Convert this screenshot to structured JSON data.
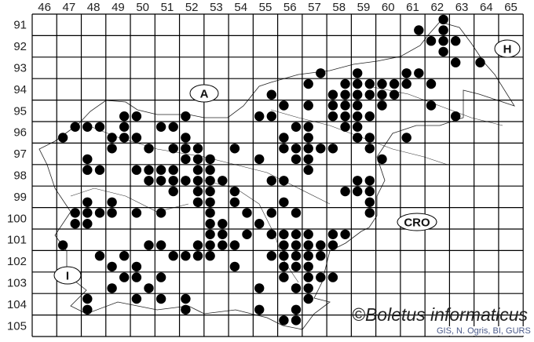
{
  "map_data": {
    "type": "grid-distribution-map",
    "column_labels": [
      "46",
      "47",
      "48",
      "49",
      "50",
      "51",
      "52",
      "53",
      "54",
      "55",
      "56",
      "57",
      "58",
      "59",
      "60",
      "61",
      "62",
      "63",
      "64",
      "65"
    ],
    "row_labels": [
      "91",
      "92",
      "93",
      "94",
      "95",
      "96",
      "97",
      "98",
      "99",
      "100",
      "101",
      "102",
      "103",
      "104",
      "105"
    ],
    "region_labels": {
      "austria": "A",
      "hungary": "H",
      "croatia": "CRO",
      "italy": "I"
    },
    "marker_color": "#000000",
    "records": [
      [
        62,
        91,
        "NE"
      ],
      [
        61,
        91,
        "SE"
      ],
      [
        62,
        91,
        "SE"
      ],
      [
        62,
        92,
        "NW"
      ],
      [
        62,
        92,
        "NE"
      ],
      [
        63,
        92,
        "NW"
      ],
      [
        62,
        92,
        "SE"
      ],
      [
        63,
        93,
        "NW"
      ],
      [
        64,
        93,
        "NW"
      ],
      [
        57,
        93,
        "SE"
      ],
      [
        59,
        93,
        "SW"
      ],
      [
        61,
        93,
        "SW"
      ],
      [
        61,
        93,
        "SE"
      ],
      [
        57,
        94,
        "NW"
      ],
      [
        58,
        94,
        "NE"
      ],
      [
        59,
        94,
        "NW"
      ],
      [
        59,
        94,
        "NE"
      ],
      [
        60,
        94,
        "NW"
      ],
      [
        60,
        94,
        "NE"
      ],
      [
        61,
        94,
        "NW"
      ],
      [
        62,
        94,
        "NW"
      ],
      [
        55,
        94,
        "SE"
      ],
      [
        58,
        94,
        "SW"
      ],
      [
        58,
        94,
        "SE"
      ],
      [
        59,
        94,
        "SW"
      ],
      [
        59,
        94,
        "SE"
      ],
      [
        60,
        94,
        "SW"
      ],
      [
        60,
        94,
        "SE"
      ],
      [
        56,
        95,
        "NW"
      ],
      [
        57,
        95,
        "NW"
      ],
      [
        58,
        95,
        "NW"
      ],
      [
        58,
        95,
        "NE"
      ],
      [
        59,
        95,
        "NW"
      ],
      [
        60,
        95,
        "NW"
      ],
      [
        62,
        95,
        "NW"
      ],
      [
        49,
        95,
        "SE"
      ],
      [
        50,
        95,
        "SW"
      ],
      [
        52,
        95,
        "SW"
      ],
      [
        55,
        95,
        "SW"
      ],
      [
        55,
        95,
        "SE"
      ],
      [
        58,
        95,
        "SW"
      ],
      [
        58,
        95,
        "SE"
      ],
      [
        59,
        95,
        "SW"
      ],
      [
        59,
        95,
        "SE"
      ],
      [
        63,
        95,
        "SW"
      ],
      [
        47,
        96,
        "NE"
      ],
      [
        48,
        96,
        "NW"
      ],
      [
        48,
        96,
        "NE"
      ],
      [
        49,
        96,
        "NE"
      ],
      [
        51,
        96,
        "NW"
      ],
      [
        51,
        96,
        "NE"
      ],
      [
        56,
        96,
        "NE"
      ],
      [
        57,
        96,
        "NW"
      ],
      [
        58,
        96,
        "NE"
      ],
      [
        59,
        96,
        "NW"
      ],
      [
        47,
        96,
        "SW"
      ],
      [
        49,
        96,
        "SW"
      ],
      [
        49,
        96,
        "SE"
      ],
      [
        50,
        96,
        "SW"
      ],
      [
        52,
        96,
        "SW"
      ],
      [
        56,
        96,
        "SW"
      ],
      [
        57,
        96,
        "SW"
      ],
      [
        59,
        96,
        "SW"
      ],
      [
        59,
        96,
        "SE"
      ],
      [
        61,
        96,
        "SW"
      ],
      [
        49,
        97,
        "NW"
      ],
      [
        50,
        97,
        "NE"
      ],
      [
        51,
        97,
        "NE"
      ],
      [
        52,
        97,
        "NW"
      ],
      [
        52,
        97,
        "NE"
      ],
      [
        54,
        97,
        "NW"
      ],
      [
        56,
        97,
        "NW"
      ],
      [
        56,
        97,
        "NE"
      ],
      [
        57,
        97,
        "NW"
      ],
      [
        57,
        97,
        "NE"
      ],
      [
        58,
        97,
        "NW"
      ],
      [
        59,
        97,
        "NE"
      ],
      [
        48,
        97,
        "SW"
      ],
      [
        52,
        97,
        "SW"
      ],
      [
        52,
        97,
        "SE"
      ],
      [
        53,
        97,
        "SW"
      ],
      [
        55,
        97,
        "SW"
      ],
      [
        56,
        97,
        "SE"
      ],
      [
        57,
        97,
        "SW"
      ],
      [
        60,
        97,
        "SW"
      ],
      [
        48,
        98,
        "NW"
      ],
      [
        48,
        98,
        "NE"
      ],
      [
        50,
        98,
        "NW"
      ],
      [
        50,
        98,
        "NE"
      ],
      [
        51,
        98,
        "NW"
      ],
      [
        51,
        98,
        "NE"
      ],
      [
        52,
        98,
        "NE"
      ],
      [
        53,
        98,
        "NW"
      ],
      [
        57,
        98,
        "NW"
      ],
      [
        50,
        98,
        "SE"
      ],
      [
        51,
        98,
        "SW"
      ],
      [
        51,
        98,
        "SE"
      ],
      [
        52,
        98,
        "SW"
      ],
      [
        52,
        98,
        "SE"
      ],
      [
        53,
        98,
        "SW"
      ],
      [
        53,
        98,
        "SE"
      ],
      [
        55,
        98,
        "SE"
      ],
      [
        56,
        98,
        "SW"
      ],
      [
        59,
        98,
        "SW"
      ],
      [
        59,
        98,
        "SE"
      ],
      [
        51,
        99,
        "NE"
      ],
      [
        52,
        99,
        "NE"
      ],
      [
        53,
        99,
        "NW"
      ],
      [
        54,
        99,
        "NW"
      ],
      [
        58,
        99,
        "NE"
      ],
      [
        59,
        99,
        "NW"
      ],
      [
        59,
        99,
        "NE"
      ],
      [
        48,
        99,
        "SW"
      ],
      [
        49,
        99,
        "SW"
      ],
      [
        52,
        99,
        "SE"
      ],
      [
        53,
        99,
        "SW"
      ],
      [
        54,
        99,
        "SW"
      ],
      [
        56,
        99,
        "SW"
      ],
      [
        59,
        99,
        "SE"
      ],
      [
        47,
        100,
        "NE"
      ],
      [
        48,
        100,
        "NW"
      ],
      [
        48,
        100,
        "NE"
      ],
      [
        49,
        100,
        "NW"
      ],
      [
        50,
        100,
        "NW"
      ],
      [
        51,
        100,
        "NW"
      ],
      [
        53,
        100,
        "NW"
      ],
      [
        54,
        100,
        "NE"
      ],
      [
        55,
        100,
        "NE"
      ],
      [
        56,
        100,
        "NE"
      ],
      [
        59,
        100,
        "NE"
      ],
      [
        47,
        100,
        "SE"
      ],
      [
        48,
        100,
        "SW"
      ],
      [
        53,
        100,
        "SW"
      ],
      [
        53,
        100,
        "SE"
      ],
      [
        55,
        100,
        "SW"
      ],
      [
        53,
        101,
        "NW"
      ],
      [
        53,
        101,
        "NE"
      ],
      [
        54,
        101,
        "NE"
      ],
      [
        55,
        101,
        "NE"
      ],
      [
        56,
        101,
        "NW"
      ],
      [
        56,
        101,
        "NE"
      ],
      [
        57,
        101,
        "NW"
      ],
      [
        58,
        101,
        "NW"
      ],
      [
        58,
        101,
        "NE"
      ],
      [
        47,
        101,
        "SW"
      ],
      [
        50,
        101,
        "SE"
      ],
      [
        51,
        101,
        "SW"
      ],
      [
        52,
        101,
        "SE"
      ],
      [
        53,
        101,
        "SW"
      ],
      [
        53,
        101,
        "SE"
      ],
      [
        54,
        101,
        "SW"
      ],
      [
        56,
        101,
        "SW"
      ],
      [
        56,
        101,
        "SE"
      ],
      [
        57,
        101,
        "SW"
      ],
      [
        57,
        101,
        "SE"
      ],
      [
        58,
        101,
        "SW"
      ],
      [
        48,
        102,
        "NE"
      ],
      [
        49,
        102,
        "NE"
      ],
      [
        51,
        102,
        "NE"
      ],
      [
        52,
        102,
        "NW"
      ],
      [
        52,
        102,
        "NE"
      ],
      [
        53,
        102,
        "NW"
      ],
      [
        55,
        102,
        "NE"
      ],
      [
        56,
        102,
        "NW"
      ],
      [
        56,
        102,
        "NE"
      ],
      [
        57,
        102,
        "NW"
      ],
      [
        57,
        102,
        "NE"
      ],
      [
        49,
        102,
        "SW"
      ],
      [
        50,
        102,
        "SW"
      ],
      [
        54,
        102,
        "SW"
      ],
      [
        56,
        102,
        "SW"
      ],
      [
        56,
        102,
        "SE"
      ],
      [
        57,
        102,
        "SW"
      ],
      [
        49,
        103,
        "NE"
      ],
      [
        50,
        103,
        "NW"
      ],
      [
        51,
        103,
        "NW"
      ],
      [
        56,
        103,
        "NW"
      ],
      [
        57,
        103,
        "NW"
      ],
      [
        57,
        103,
        "NE"
      ],
      [
        58,
        103,
        "NW"
      ],
      [
        49,
        103,
        "SW"
      ],
      [
        50,
        103,
        "SE"
      ],
      [
        55,
        103,
        "SW"
      ],
      [
        56,
        103,
        "SE"
      ],
      [
        57,
        103,
        "SW"
      ],
      [
        48,
        104,
        "NW"
      ],
      [
        50,
        104,
        "NW"
      ],
      [
        51,
        104,
        "NW"
      ],
      [
        52,
        104,
        "NW"
      ],
      [
        57,
        104,
        "NW"
      ],
      [
        48,
        104,
        "SW"
      ],
      [
        52,
        104,
        "SW"
      ],
      [
        55,
        104,
        "SW"
      ],
      [
        56,
        104,
        "SE"
      ],
      [
        56,
        105,
        "NW"
      ],
      [
        56,
        105,
        "NE"
      ]
    ]
  },
  "watermark": "©Boletus informaticus",
  "credit": "GIS, N. Ogris, BI, GURS"
}
